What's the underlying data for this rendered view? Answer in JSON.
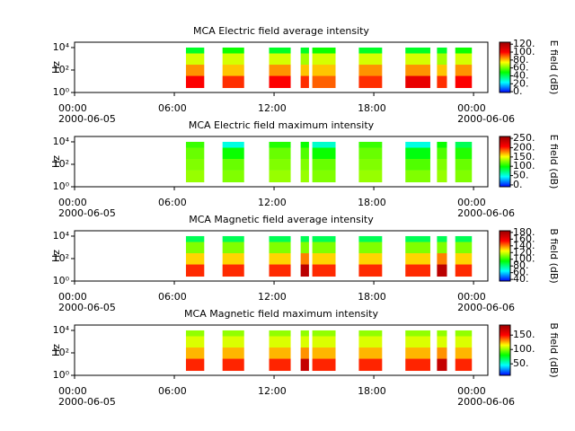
{
  "chart_data": [
    {
      "type": "spectrogram",
      "title": "MCA  Electric field average intensity",
      "ylabel": "Hz",
      "log_y": true,
      "ylim": [
        1,
        30000
      ],
      "yticks": [
        {
          "value": 1,
          "label": "10⁰"
        },
        {
          "value": 100,
          "label": "10²"
        },
        {
          "value": 10000,
          "label": "10⁴"
        }
      ],
      "xlim": [
        0,
        24.86
      ],
      "xticks": [
        {
          "value": 0,
          "label": "00:00 2000-06-05"
        },
        {
          "value": 6,
          "label": "06:00"
        },
        {
          "value": 12,
          "label": "12:00"
        },
        {
          "value": 18,
          "label": "18:00"
        },
        {
          "value": 24,
          "label": "00:00 2000-06-06"
        }
      ],
      "x_start": [
        6.7,
        8.9,
        11.7,
        13.6,
        14.3,
        17.1,
        19.9,
        21.8,
        22.9
      ],
      "x_end": [
        7.8,
        10.2,
        13.0,
        14.1,
        15.7,
        18.5,
        21.4,
        22.4,
        23.9
      ],
      "freq_bands": [
        2.5,
        30,
        300,
        3000,
        10000
      ],
      "values": [
        [
          100,
          85,
          70,
          45
        ],
        [
          95,
          80,
          70,
          50
        ],
        [
          100,
          85,
          70,
          45
        ],
        [
          95,
          80,
          65,
          45
        ],
        [
          90,
          80,
          70,
          50
        ],
        [
          95,
          85,
          70,
          45
        ],
        [
          105,
          85,
          70,
          45
        ],
        [
          95,
          80,
          65,
          45
        ],
        [
          100,
          85,
          70,
          50
        ]
      ],
      "colormap": [
        "#0000ff",
        "#00ffff",
        "#00ff00",
        "#ffff00",
        "#ff0000",
        "#990000"
      ],
      "colorbar": {
        "label": "E field (dB)",
        "lim": [
          -2,
          125
        ],
        "ticks": [
          {
            "value": 0,
            "label": "0."
          },
          {
            "value": 20,
            "label": "20."
          },
          {
            "value": 40,
            "label": "40."
          },
          {
            "value": 60,
            "label": "60."
          },
          {
            "value": 80,
            "label": "80."
          },
          {
            "value": 100,
            "label": "100."
          },
          {
            "value": 120,
            "label": "120."
          }
        ]
      }
    },
    {
      "type": "spectrogram",
      "title": "MCA  Electric field maximum intensity",
      "ylabel": "Hz",
      "log_y": true,
      "ylim": [
        1,
        30000
      ],
      "yticks": [
        {
          "value": 1,
          "label": "10⁰"
        },
        {
          "value": 100,
          "label": "10²"
        },
        {
          "value": 10000,
          "label": "10⁴"
        }
      ],
      "xlim": [
        0,
        24.86
      ],
      "xticks": [
        {
          "value": 0,
          "label": "00:00 2000-06-05"
        },
        {
          "value": 6,
          "label": "06:00"
        },
        {
          "value": 12,
          "label": "12:00"
        },
        {
          "value": 18,
          "label": "18:00"
        },
        {
          "value": 24,
          "label": "00:00 2000-06-06"
        }
      ],
      "x_start": [
        6.7,
        8.9,
        11.7,
        13.6,
        14.3,
        17.1,
        19.9,
        21.8,
        22.9
      ],
      "x_end": [
        7.8,
        10.2,
        13.0,
        14.1,
        15.7,
        18.5,
        21.4,
        22.4,
        23.9
      ],
      "freq_bands": [
        2.5,
        30,
        300,
        3000,
        10000
      ],
      "values": [
        [
          130,
          125,
          120,
          110
        ],
        [
          125,
          120,
          100,
          50
        ],
        [
          130,
          125,
          120,
          105
        ],
        [
          130,
          125,
          115,
          100
        ],
        [
          125,
          120,
          100,
          55
        ],
        [
          130,
          125,
          120,
          110
        ],
        [
          125,
          115,
          95,
          50
        ],
        [
          130,
          125,
          115,
          100
        ],
        [
          125,
          120,
          105,
          80
        ]
      ],
      "colormap": [
        "#0000ff",
        "#00ffff",
        "#00ff00",
        "#ffff00",
        "#ff0000",
        "#990000"
      ],
      "colorbar": {
        "label": "E field (dB)",
        "lim": [
          -10,
          260
        ],
        "ticks": [
          {
            "value": 0,
            "label": "0."
          },
          {
            "value": 50,
            "label": "50."
          },
          {
            "value": 100,
            "label": "100."
          },
          {
            "value": 150,
            "label": "150."
          },
          {
            "value": 200,
            "label": "200."
          },
          {
            "value": 250,
            "label": "250."
          }
        ]
      }
    },
    {
      "type": "spectrogram",
      "title": "MCA  Magnetic field average intensity",
      "ylabel": "Hz",
      "log_y": true,
      "ylim": [
        1,
        30000
      ],
      "yticks": [
        {
          "value": 1,
          "label": "10⁰"
        },
        {
          "value": 100,
          "label": "10²"
        },
        {
          "value": 10000,
          "label": "10⁴"
        }
      ],
      "xlim": [
        0,
        24.86
      ],
      "xticks": [
        {
          "value": 0,
          "label": "00:00 2000-06-05"
        },
        {
          "value": 6,
          "label": "06:00"
        },
        {
          "value": 12,
          "label": "12:00"
        },
        {
          "value": 18,
          "label": "18:00"
        },
        {
          "value": 24,
          "label": "00:00 2000-06-06"
        }
      ],
      "x_start": [
        6.7,
        8.9,
        11.7,
        13.6,
        14.3,
        17.1,
        19.9,
        21.8,
        22.9
      ],
      "x_end": [
        7.8,
        10.2,
        13.0,
        14.1,
        15.7,
        18.5,
        21.4,
        22.4,
        23.9
      ],
      "freq_bands": [
        2.5,
        30,
        300,
        3000,
        10000
      ],
      "values": [
        [
          150,
          130,
          110,
          85
        ],
        [
          150,
          130,
          110,
          85
        ],
        [
          150,
          130,
          110,
          85
        ],
        [
          175,
          140,
          110,
          85
        ],
        [
          150,
          130,
          110,
          85
        ],
        [
          150,
          130,
          110,
          85
        ],
        [
          150,
          130,
          110,
          85
        ],
        [
          175,
          140,
          110,
          85
        ],
        [
          150,
          130,
          110,
          85
        ]
      ],
      "colormap": [
        "#0000ff",
        "#00ffff",
        "#00ff00",
        "#ffff00",
        "#ff0000",
        "#990000"
      ],
      "colorbar": {
        "label": "B field (dB)",
        "lim": [
          35,
          185
        ],
        "ticks": [
          {
            "value": 40,
            "label": "40."
          },
          {
            "value": 60,
            "label": "60."
          },
          {
            "value": 80,
            "label": "80."
          },
          {
            "value": 100,
            "label": "100."
          },
          {
            "value": 120,
            "label": "120."
          },
          {
            "value": 140,
            "label": "140."
          },
          {
            "value": 160,
            "label": "160."
          },
          {
            "value": 180,
            "label": "180."
          }
        ]
      }
    },
    {
      "type": "spectrogram",
      "title": "MCA  Magnetic field maximum intensity",
      "ylabel": "Hz",
      "log_y": true,
      "ylim": [
        1,
        30000
      ],
      "yticks": [
        {
          "value": 1,
          "label": "10⁰"
        },
        {
          "value": 100,
          "label": "10²"
        },
        {
          "value": 10000,
          "label": "10⁴"
        }
      ],
      "xlim": [
        0,
        24.86
      ],
      "xticks": [
        {
          "value": 0,
          "label": "00:00 2000-06-05"
        },
        {
          "value": 6,
          "label": "06:00"
        },
        {
          "value": 12,
          "label": "12:00"
        },
        {
          "value": 18,
          "label": "18:00"
        },
        {
          "value": 24,
          "label": "00:00 2000-06-06"
        }
      ],
      "x_start": [
        6.7,
        8.9,
        11.7,
        13.6,
        14.3,
        17.1,
        19.9,
        21.8,
        22.9
      ],
      "x_end": [
        7.8,
        10.2,
        13.0,
        14.1,
        15.7,
        18.5,
        21.4,
        22.4,
        23.9
      ],
      "freq_bands": [
        2.5,
        30,
        300,
        3000,
        10000
      ],
      "values": [
        [
          145,
          125,
          110,
          100
        ],
        [
          145,
          125,
          110,
          100
        ],
        [
          145,
          125,
          110,
          100
        ],
        [
          170,
          130,
          110,
          100
        ],
        [
          145,
          125,
          110,
          100
        ],
        [
          145,
          125,
          110,
          100
        ],
        [
          145,
          125,
          110,
          100
        ],
        [
          170,
          130,
          110,
          100
        ],
        [
          145,
          125,
          110,
          100
        ]
      ],
      "colormap": [
        "#0000ff",
        "#00ffff",
        "#00ff00",
        "#ffff00",
        "#ff0000",
        "#990000"
      ],
      "colorbar": {
        "label": "B field (dB)",
        "lim": [
          10,
          185
        ],
        "ticks": [
          {
            "value": 50,
            "label": "50."
          },
          {
            "value": 100,
            "label": "100."
          },
          {
            "value": 150,
            "label": "150."
          }
        ]
      }
    }
  ]
}
